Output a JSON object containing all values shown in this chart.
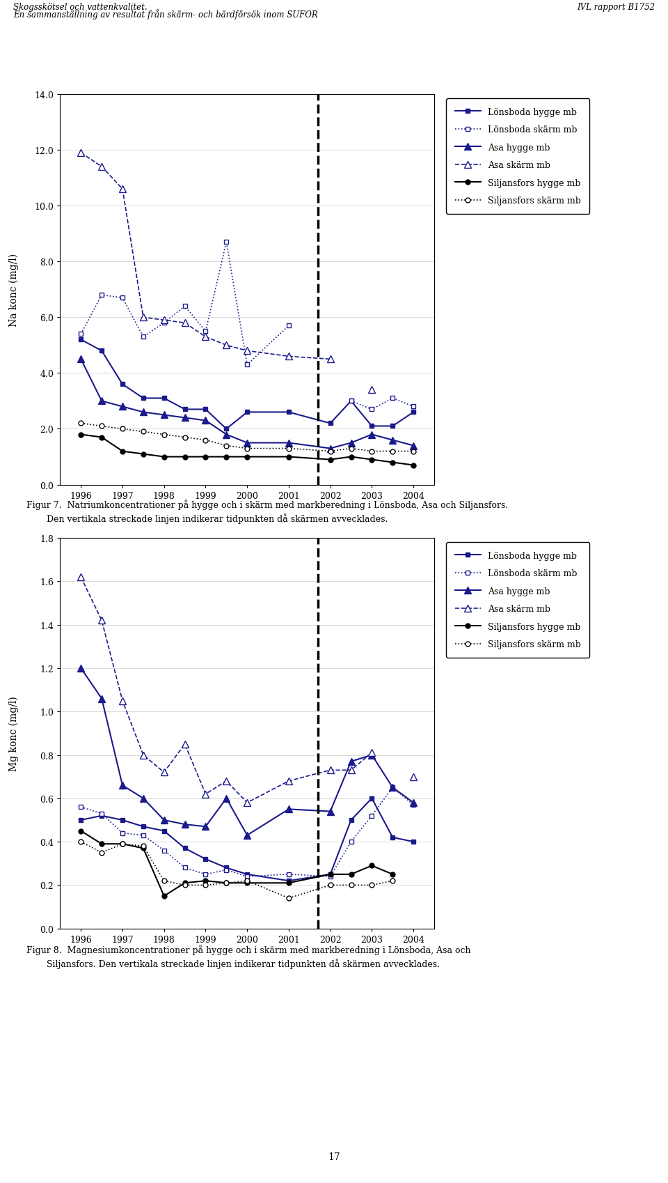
{
  "header_left1": "Skogsskötsel och vattenkvalitet.",
  "header_left2": "En sammanställning av resultat från skärm- och bärdförsök inom SUFOR",
  "header_right": "IVL rapport B1752",
  "page_number": "17",
  "fig7_ylabel": "Na konc (mg/l)",
  "fig7_ylim": [
    0.0,
    14.0
  ],
  "fig7_yticks": [
    0.0,
    2.0,
    4.0,
    6.0,
    8.0,
    10.0,
    12.0,
    14.0
  ],
  "fig7_caption1": "Figur 7.  Natriumkoncentrationer på hygge och i skärm med markberedning i Lönsboda, Asa och Siljansfors.",
  "fig7_caption2": "Den vertikala streckade linjen indikerar tidpunkten då skärmen avvecklades.",
  "fig7_vline_x": 2001.7,
  "fig8_ylabel": "Mg konc (mg/l)",
  "fig8_ylim": [
    0.0,
    1.8
  ],
  "fig8_yticks": [
    0.0,
    0.2,
    0.4,
    0.6,
    0.8,
    1.0,
    1.2,
    1.4,
    1.6,
    1.8
  ],
  "fig8_caption1": "Figur 8.  Magnesiumkoncentrationer på hygge och i skärm med markberedning i Lönsboda, Asa och",
  "fig8_caption2": "Siljansfors. Den vertikala streckade linjen indikerar tidpunkten då skärmen avvecklades.",
  "fig8_vline_x": 2001.7,
  "xlim": [
    1995.5,
    2004.5
  ],
  "xticks": [
    1996,
    1997,
    1998,
    1999,
    2000,
    2001,
    2002,
    2003,
    2004
  ],
  "fig7_lonsboda_hygge": {
    "x": [
      1996,
      1996.5,
      1997,
      1997.5,
      1998,
      1998.5,
      1999,
      1999.5,
      2000,
      2001,
      2002,
      2002.5,
      2003,
      2003.5,
      2004
    ],
    "y": [
      5.2,
      4.8,
      3.6,
      3.1,
      3.1,
      2.7,
      2.7,
      2.0,
      2.6,
      2.6,
      2.2,
      3.0,
      2.1,
      2.1,
      2.6
    ],
    "color": "#1a1a8c",
    "marker": "s",
    "linestyle": "-",
    "linewidth": 1.5,
    "markersize": 5
  },
  "fig7_lonsboda_skarm": {
    "x": [
      1996,
      1996.5,
      1997,
      1997.5,
      1998,
      1998.5,
      1999,
      1999.5,
      2000,
      2001,
      2002,
      2002.5,
      2003,
      2003.5,
      2004
    ],
    "y": [
      5.4,
      6.8,
      6.7,
      5.3,
      5.8,
      6.4,
      5.5,
      8.7,
      4.3,
      5.7,
      null,
      3.0,
      2.7,
      3.1,
      2.8
    ],
    "color": "#1a1a8c",
    "marker": "s",
    "linestyle": ":",
    "linewidth": 1.2,
    "markersize": 5,
    "markerfacecolor": "white"
  },
  "fig7_asa_hygge": {
    "x": [
      1996,
      1996.5,
      1997,
      1997.5,
      1998,
      1998.5,
      1999,
      1999.5,
      2000,
      2001,
      2002,
      2002.5,
      2003,
      2003.5,
      2004
    ],
    "y": [
      4.5,
      3.0,
      2.8,
      2.6,
      2.5,
      2.4,
      2.3,
      1.8,
      1.5,
      1.5,
      1.3,
      1.5,
      1.8,
      1.6,
      1.4
    ],
    "color": "#1a1a8c",
    "marker": "^",
    "linestyle": "-",
    "linewidth": 1.5,
    "markersize": 7
  },
  "fig7_asa_skarm": {
    "x": [
      1996,
      1996.5,
      1997,
      1997.5,
      1998,
      1998.5,
      1999,
      1999.5,
      2000,
      2001,
      2002,
      2002.5,
      2003,
      2003.5,
      2004
    ],
    "y": [
      11.9,
      11.4,
      10.6,
      6.0,
      5.9,
      5.8,
      5.3,
      5.0,
      4.8,
      4.6,
      4.5,
      null,
      3.4,
      null,
      null
    ],
    "color": "#1a1a8c",
    "marker": "^",
    "linestyle": "--",
    "linewidth": 1.2,
    "markersize": 7,
    "markerfacecolor": "white"
  },
  "fig7_siljansfors_hygge": {
    "x": [
      1996,
      1996.5,
      1997,
      1997.5,
      1998,
      1998.5,
      1999,
      1999.5,
      2000,
      2001,
      2002,
      2002.5,
      2003,
      2003.5,
      2004
    ],
    "y": [
      1.8,
      1.7,
      1.2,
      1.1,
      1.0,
      1.0,
      1.0,
      1.0,
      1.0,
      1.0,
      0.9,
      1.0,
      0.9,
      0.8,
      0.7
    ],
    "color": "#000000",
    "marker": "o",
    "linestyle": "-",
    "linewidth": 1.5,
    "markersize": 5
  },
  "fig7_siljansfors_skarm": {
    "x": [
      1996,
      1996.5,
      1997,
      1997.5,
      1998,
      1998.5,
      1999,
      1999.5,
      2000,
      2001,
      2002,
      2002.5,
      2003,
      2003.5,
      2004
    ],
    "y": [
      2.2,
      2.1,
      2.0,
      1.9,
      1.8,
      1.7,
      1.6,
      1.4,
      1.3,
      1.3,
      1.2,
      1.3,
      1.2,
      1.2,
      1.2
    ],
    "color": "#000000",
    "marker": "o",
    "linestyle": ":",
    "linewidth": 1.2,
    "markersize": 5,
    "markerfacecolor": "white"
  },
  "fig8_lonsboda_hygge": {
    "x": [
      1996,
      1996.5,
      1997,
      1997.5,
      1998,
      1998.5,
      1999,
      1999.5,
      2000,
      2001,
      2002,
      2002.5,
      2003,
      2003.5,
      2004
    ],
    "y": [
      0.5,
      0.52,
      0.5,
      0.47,
      0.45,
      0.37,
      0.32,
      0.28,
      0.25,
      0.22,
      0.25,
      0.5,
      0.6,
      0.42,
      0.4
    ],
    "color": "#1a1a8c",
    "marker": "s",
    "linestyle": "-",
    "linewidth": 1.5,
    "markersize": 5
  },
  "fig8_lonsboda_skarm": {
    "x": [
      1996,
      1996.5,
      1997,
      1997.5,
      1998,
      1998.5,
      1999,
      1999.5,
      2000,
      2001,
      2002,
      2002.5,
      2003,
      2003.5,
      2004
    ],
    "y": [
      0.56,
      0.53,
      0.44,
      0.43,
      0.36,
      0.28,
      0.25,
      0.27,
      0.24,
      0.25,
      0.24,
      0.4,
      0.52,
      0.65,
      0.57
    ],
    "color": "#1a1a8c",
    "marker": "s",
    "linestyle": ":",
    "linewidth": 1.2,
    "markersize": 5,
    "markerfacecolor": "white"
  },
  "fig8_asa_hygge": {
    "x": [
      1996,
      1996.5,
      1997,
      1997.5,
      1998,
      1998.5,
      1999,
      1999.5,
      2000,
      2001,
      2002,
      2002.5,
      2003,
      2003.5,
      2004
    ],
    "y": [
      1.2,
      1.06,
      0.66,
      0.6,
      0.5,
      0.48,
      0.47,
      0.6,
      0.43,
      0.55,
      0.54,
      0.77,
      0.8,
      0.65,
      0.58
    ],
    "color": "#1a1a8c",
    "marker": "^",
    "linestyle": "-",
    "linewidth": 1.5,
    "markersize": 7
  },
  "fig8_asa_skarm": {
    "x": [
      1996,
      1996.5,
      1997,
      1997.5,
      1998,
      1998.5,
      1999,
      1999.5,
      2000,
      2001,
      2002,
      2002.5,
      2003,
      2003.5,
      2004
    ],
    "y": [
      1.62,
      1.42,
      1.05,
      0.8,
      0.72,
      0.85,
      0.62,
      0.68,
      0.58,
      0.68,
      0.73,
      0.73,
      0.81,
      null,
      0.7
    ],
    "color": "#1a1a8c",
    "marker": "^",
    "linestyle": "--",
    "linewidth": 1.2,
    "markersize": 7,
    "markerfacecolor": "white"
  },
  "fig8_siljansfors_hygge": {
    "x": [
      1996,
      1996.5,
      1997,
      1997.5,
      1998,
      1998.5,
      1999,
      1999.5,
      2000,
      2001,
      2002,
      2002.5,
      2003,
      2003.5,
      2004
    ],
    "y": [
      0.45,
      0.39,
      0.39,
      0.37,
      0.15,
      0.21,
      0.22,
      0.21,
      0.21,
      0.21,
      0.25,
      0.25,
      0.29,
      0.25,
      null
    ],
    "color": "#000000",
    "marker": "o",
    "linestyle": "-",
    "linewidth": 1.5,
    "markersize": 5
  },
  "fig8_siljansfors_skarm": {
    "x": [
      1996,
      1996.5,
      1997,
      1997.5,
      1998,
      1998.5,
      1999,
      1999.5,
      2000,
      2001,
      2002,
      2002.5,
      2003,
      2003.5,
      2004
    ],
    "y": [
      0.4,
      0.35,
      0.39,
      0.38,
      0.22,
      0.2,
      0.2,
      0.21,
      0.22,
      0.14,
      0.2,
      0.2,
      0.2,
      0.22,
      null
    ],
    "color": "#000000",
    "marker": "o",
    "linestyle": ":",
    "linewidth": 1.2,
    "markersize": 5,
    "markerfacecolor": "white"
  }
}
